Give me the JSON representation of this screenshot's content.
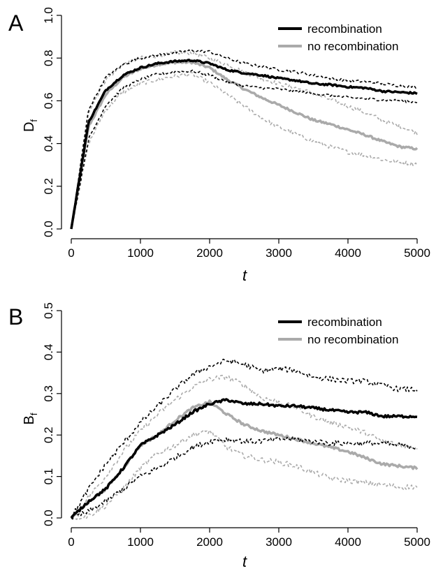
{
  "chart_data": [
    {
      "type": "line",
      "panel_label": "A",
      "xlabel": "t",
      "ylabel": "D",
      "ylabel_sub": "f",
      "xlim": [
        0,
        5000
      ],
      "ylim": [
        0,
        1.0
      ],
      "x_ticks": [
        "0",
        "1000",
        "2000",
        "3000",
        "4000",
        "5000"
      ],
      "y_ticks": [
        "0.0",
        "0.2",
        "0.4",
        "0.6",
        "0.8",
        "1.0"
      ],
      "grid": false,
      "legend_position": "top-right",
      "legend": [
        "recombination",
        "no recombination"
      ],
      "x": [
        0,
        250,
        500,
        750,
        1000,
        1250,
        1500,
        1750,
        2000,
        2250,
        2500,
        2750,
        3000,
        3250,
        3500,
        3750,
        4000,
        4250,
        4500,
        4750,
        5000
      ],
      "series": [
        {
          "name": "recombination",
          "style": "solid",
          "color": "#000000",
          "noise": 0.004,
          "values": [
            0.0,
            0.5,
            0.65,
            0.72,
            0.755,
            0.775,
            0.785,
            0.79,
            0.775,
            0.745,
            0.73,
            0.72,
            0.705,
            0.695,
            0.68,
            0.675,
            0.665,
            0.66,
            0.645,
            0.64,
            0.635
          ]
        },
        {
          "name": "no recombination",
          "style": "solid",
          "color": "#aaaaaa",
          "noise": 0.005,
          "values": [
            0.0,
            0.48,
            0.63,
            0.71,
            0.75,
            0.77,
            0.78,
            0.78,
            0.755,
            0.7,
            0.655,
            0.615,
            0.58,
            0.545,
            0.51,
            0.49,
            0.465,
            0.44,
            0.41,
            0.385,
            0.375
          ]
        },
        {
          "style": "dashed",
          "color": "#000000",
          "noise": 0.004,
          "values": [
            0.0,
            0.56,
            0.71,
            0.77,
            0.8,
            0.815,
            0.825,
            0.835,
            0.83,
            0.8,
            0.775,
            0.76,
            0.745,
            0.735,
            0.72,
            0.705,
            0.695,
            0.69,
            0.68,
            0.67,
            0.665
          ]
        },
        {
          "style": "dashed",
          "color": "#000000",
          "noise": 0.004,
          "values": [
            0.0,
            0.42,
            0.58,
            0.66,
            0.7,
            0.725,
            0.735,
            0.74,
            0.72,
            0.69,
            0.67,
            0.66,
            0.655,
            0.645,
            0.635,
            0.625,
            0.615,
            0.61,
            0.605,
            0.6,
            0.595
          ]
        },
        {
          "style": "dashed",
          "color": "#aaaaaa",
          "noise": 0.006,
          "values": [
            0.0,
            0.55,
            0.7,
            0.77,
            0.8,
            0.81,
            0.825,
            0.825,
            0.8,
            0.77,
            0.735,
            0.705,
            0.68,
            0.66,
            0.635,
            0.605,
            0.575,
            0.545,
            0.51,
            0.48,
            0.45
          ]
        },
        {
          "style": "dashed",
          "color": "#aaaaaa",
          "noise": 0.006,
          "values": [
            0.0,
            0.4,
            0.56,
            0.64,
            0.68,
            0.7,
            0.715,
            0.725,
            0.685,
            0.63,
            0.575,
            0.52,
            0.475,
            0.445,
            0.41,
            0.385,
            0.36,
            0.345,
            0.325,
            0.31,
            0.305
          ]
        }
      ]
    },
    {
      "type": "line",
      "panel_label": "B",
      "xlabel": "t",
      "ylabel": "B",
      "ylabel_sub": "f",
      "xlim": [
        0,
        5000
      ],
      "ylim": [
        0,
        0.5
      ],
      "x_ticks": [
        "0",
        "1000",
        "2000",
        "3000",
        "4000",
        "5000"
      ],
      "y_ticks": [
        "0.0",
        "0.1",
        "0.2",
        "0.3",
        "0.4",
        "0.5"
      ],
      "grid": false,
      "legend_position": "top-right",
      "legend": [
        "recombination",
        "no recombination"
      ],
      "x": [
        0,
        250,
        500,
        750,
        1000,
        1250,
        1500,
        1750,
        2000,
        2250,
        2500,
        2750,
        3000,
        3250,
        3500,
        3750,
        4000,
        4250,
        4500,
        4750,
        5000
      ],
      "series": [
        {
          "name": "recombination",
          "style": "solid",
          "color": "#000000",
          "noise": 0.003,
          "values": [
            0.0,
            0.04,
            0.07,
            0.12,
            0.175,
            0.2,
            0.225,
            0.255,
            0.275,
            0.285,
            0.275,
            0.275,
            0.27,
            0.27,
            0.265,
            0.26,
            0.255,
            0.255,
            0.245,
            0.245,
            0.245
          ]
        },
        {
          "name": "no recombination",
          "style": "solid",
          "color": "#aaaaaa",
          "noise": 0.003,
          "values": [
            0.0,
            0.04,
            0.07,
            0.12,
            0.175,
            0.2,
            0.235,
            0.265,
            0.28,
            0.25,
            0.225,
            0.21,
            0.2,
            0.19,
            0.18,
            0.17,
            0.16,
            0.145,
            0.13,
            0.125,
            0.12
          ]
        },
        {
          "style": "dashed",
          "color": "#000000",
          "noise": 0.004,
          "values": [
            0.0,
            0.07,
            0.13,
            0.18,
            0.23,
            0.27,
            0.31,
            0.345,
            0.365,
            0.38,
            0.37,
            0.355,
            0.36,
            0.355,
            0.34,
            0.335,
            0.33,
            0.33,
            0.32,
            0.31,
            0.31
          ]
        },
        {
          "style": "dashed",
          "color": "#000000",
          "noise": 0.004,
          "values": [
            0.0,
            0.015,
            0.04,
            0.07,
            0.1,
            0.12,
            0.145,
            0.17,
            0.185,
            0.19,
            0.185,
            0.185,
            0.19,
            0.19,
            0.185,
            0.18,
            0.18,
            0.18,
            0.18,
            0.175,
            0.17
          ]
        },
        {
          "style": "dashed",
          "color": "#aaaaaa",
          "noise": 0.004,
          "values": [
            0.0,
            0.05,
            0.1,
            0.16,
            0.21,
            0.25,
            0.285,
            0.315,
            0.335,
            0.34,
            0.32,
            0.29,
            0.28,
            0.265,
            0.245,
            0.23,
            0.22,
            0.205,
            0.185,
            0.175,
            0.17
          ]
        },
        {
          "style": "dashed",
          "color": "#aaaaaa",
          "noise": 0.004,
          "values": [
            0.0,
            0.005,
            0.03,
            0.07,
            0.12,
            0.155,
            0.175,
            0.2,
            0.21,
            0.17,
            0.15,
            0.14,
            0.135,
            0.125,
            0.11,
            0.095,
            0.09,
            0.085,
            0.08,
            0.075,
            0.075
          ]
        }
      ]
    }
  ]
}
